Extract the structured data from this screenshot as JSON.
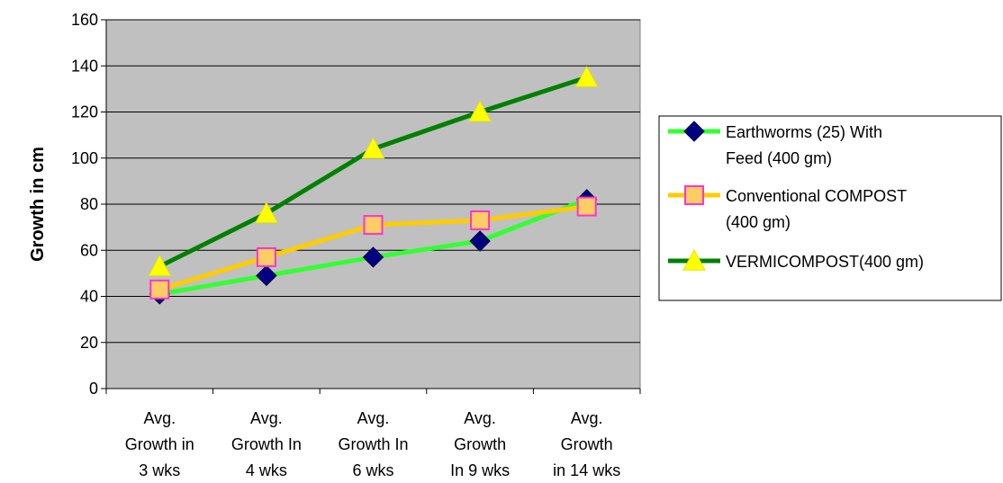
{
  "chart_data": {
    "type": "line",
    "categories": [
      [
        "Avg.",
        "Growth in",
        "3 wks"
      ],
      [
        "Avg.",
        "Growth In",
        "4 wks"
      ],
      [
        "Avg.",
        "Growth In",
        "6 wks"
      ],
      [
        "Avg.",
        "Growth",
        "In 9 wks"
      ],
      [
        "Avg.",
        "Growth",
        "in 14 wks"
      ]
    ],
    "ylabel": "Growth in cm",
    "ylim": [
      0,
      160
    ],
    "yticks": [
      0,
      20,
      40,
      60,
      80,
      100,
      120,
      140,
      160
    ],
    "grid": true,
    "legend_position": "right",
    "plot_background": "#c0c0c0",
    "series": [
      {
        "name_lines": [
          "Earthworms (25) With",
          "Feed (400 gm)"
        ],
        "values": [
          41,
          49,
          57,
          64,
          82
        ],
        "line_color": "#33ff33",
        "marker": "diamond",
        "marker_color": "#000080"
      },
      {
        "name_lines": [
          "Conventional COMPOST",
          "(400 gm)"
        ],
        "values": [
          43,
          57,
          71,
          73,
          79
        ],
        "line_color": "#ffcc00",
        "marker": "square",
        "marker_color": "#ffcc66",
        "marker_edge": "#ff33cc"
      },
      {
        "name_lines": [
          "VERMICOMPOST(400 gm)"
        ],
        "values": [
          53,
          76,
          104,
          120,
          135
        ],
        "line_color": "#008000",
        "marker": "triangle",
        "marker_color": "#ffff00"
      }
    ]
  }
}
